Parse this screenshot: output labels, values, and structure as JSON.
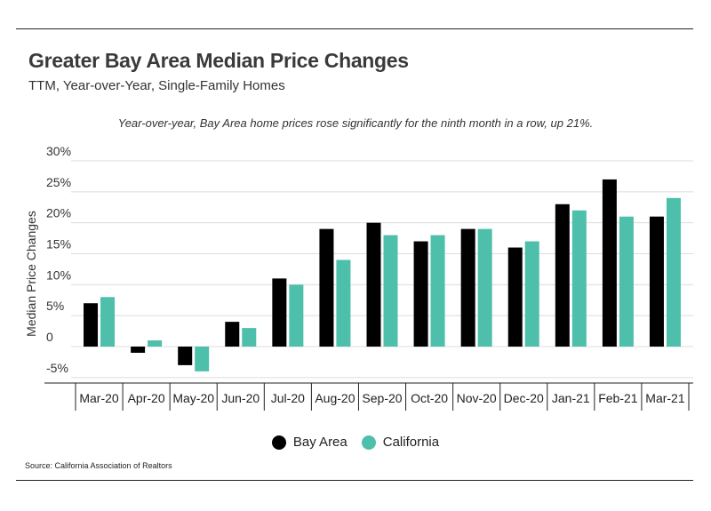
{
  "header": {
    "title": "Greater Bay Area Median Price Changes",
    "subtitle": "TTM, Year-over-Year, Single-Family Homes",
    "annotation": "Year-over-year, Bay Area home prices rose significantly for the ninth month in a row, up 21%."
  },
  "source": "Source:  California Association of Realtors",
  "colors": {
    "bay_area": "#000000",
    "california": "#4dbfab"
  },
  "chart_data": {
    "type": "bar",
    "title": "Greater Bay Area Median Price Changes",
    "xlabel": "",
    "ylabel": "Median Price Changes",
    "ylim": [
      -7,
      30
    ],
    "yticks": [
      30,
      25,
      20,
      15,
      10,
      5,
      0,
      -5
    ],
    "ytick_labels": [
      "30%",
      "25%",
      "20%",
      "15%",
      "10%",
      "5%",
      "0",
      "-5%"
    ],
    "categories": [
      "Mar-20",
      "Apr-20",
      "May-20",
      "Jun-20",
      "Jul-20",
      "Aug-20",
      "Sep-20",
      "Oct-20",
      "Nov-20",
      "Dec-20",
      "Jan-21",
      "Feb-21",
      "Mar-21"
    ],
    "series": [
      {
        "name": "Bay Area",
        "values": [
          7,
          -1,
          -3,
          4,
          11,
          19,
          20,
          17,
          19,
          16,
          23,
          27,
          21
        ]
      },
      {
        "name": "California",
        "values": [
          8,
          1,
          -4,
          3,
          10,
          14,
          18,
          18,
          19,
          17,
          22,
          21,
          24
        ]
      }
    ],
    "legend": "bottom-center",
    "grid": true
  }
}
